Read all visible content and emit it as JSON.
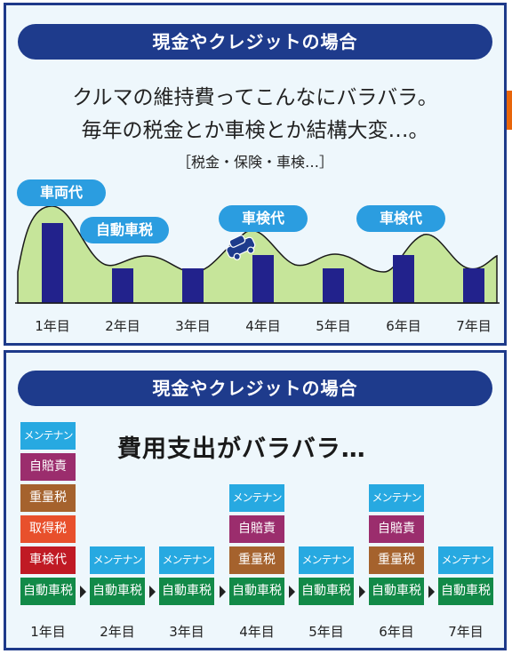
{
  "colors": {
    "header": "#1e3b8c",
    "border": "#1e3a8a",
    "bubble": "#2b9de0",
    "bar": "#22228c",
    "mountain": "#c6e59a",
    "maintenance": "#27a9e1",
    "insurance": "#9b2d6d",
    "weight_tax": "#a5622d",
    "acquisition_tax": "#e8502c",
    "inspection_fee": "#c01a24",
    "car_tax": "#128a48",
    "accent_tab": "#e8650a"
  },
  "panel1": {
    "header": "現金やクレジットの場合",
    "line1": "クルマの維持費ってこんなにバラバラ。",
    "line2": "毎年の税金とか車検とか結構大変…。",
    "sub": "［税金・保険・車検…］",
    "bubbles": {
      "b1": "車両代",
      "b2": "自動車税",
      "b3": "車検代",
      "b4": "車検代"
    },
    "car_icon": "car-icon",
    "years": [
      "1年目",
      "2年目",
      "3年目",
      "4年目",
      "5年目",
      "6年目",
      "7年目"
    ]
  },
  "panel2": {
    "header": "現金やクレジットの場合",
    "title": "費用支出がバラバラ…",
    "labels": {
      "maintenance": "メンテナンス",
      "insurance": "自賠責",
      "weight_tax": "重量税",
      "acquisition_tax": "取得税",
      "inspection_fee": "車検代",
      "car_tax": "自動車税"
    },
    "years": [
      "1年目",
      "2年目",
      "3年目",
      "4年目",
      "5年目",
      "6年目",
      "7年目"
    ]
  }
}
